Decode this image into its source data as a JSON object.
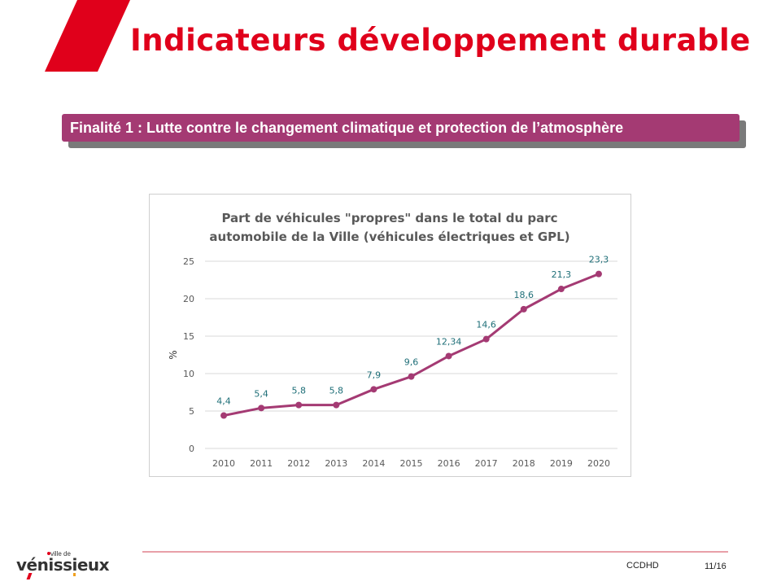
{
  "slide": {
    "title": "Indicateurs développement durable",
    "banner": "Finalité 1 : Lutte contre le changement climatique et protection de l’atmosphère",
    "footer_left": "CCDHD",
    "footer_right": "11/16",
    "logo_small": "ville de",
    "logo_main": "vénissieux"
  },
  "colors": {
    "title_red": "#e0001b",
    "banner_purple": "#a43a73",
    "series": "#a43a73",
    "data_label": "#1f6f78"
  },
  "chart_data": {
    "type": "line",
    "title_line1": "Part de véhicules \"propres\" dans le total du parc",
    "title_line2": "automobile de la Ville (véhicules électriques et GPL)",
    "ylabel": "%",
    "categories": [
      "2010",
      "2011",
      "2012",
      "2013",
      "2014",
      "2015",
      "2016",
      "2017",
      "2018",
      "2019",
      "2020"
    ],
    "values": [
      4.4,
      5.4,
      5.8,
      5.8,
      7.9,
      9.6,
      12.34,
      14.6,
      18.6,
      21.3,
      23.3
    ],
    "data_labels": [
      "4,4",
      "5,4",
      "5,8",
      "5,8",
      "7,9",
      "9,6",
      "12,34",
      "14,6",
      "18,6",
      "21,3",
      "23,3"
    ],
    "yticks": [
      "0",
      "5",
      "10",
      "15",
      "20",
      "25"
    ],
    "ylim": [
      0,
      25
    ],
    "grid": true,
    "legend": "none"
  }
}
